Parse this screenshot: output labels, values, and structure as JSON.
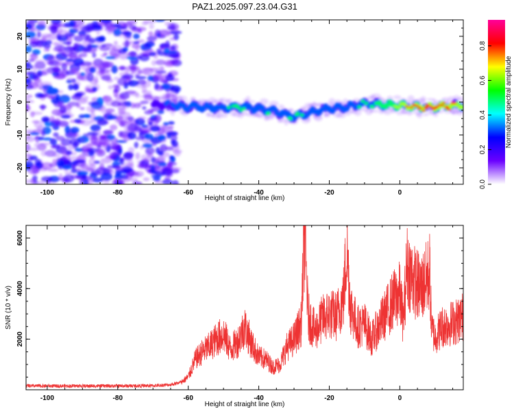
{
  "figure": {
    "title": "PAZ1.2025.097.23.04.G31"
  },
  "chart_data": [
    {
      "type": "heatmap",
      "xlabel": "Height of straight line (km)",
      "ylabel": "Frequency (Hz)",
      "xlim": [
        -106,
        18
      ],
      "ylim": [
        -25,
        25
      ],
      "x_ticks": [
        -100,
        -80,
        -60,
        -40,
        -20,
        0
      ],
      "y_ticks": [
        -20,
        -10,
        0,
        10,
        20
      ],
      "grid": false,
      "colorbar": {
        "label": "Normalized spectral amplitude",
        "range": [
          0,
          0.95
        ],
        "ticks": [
          "0.0",
          "0.2",
          "0.4",
          "0.6",
          "0.8"
        ],
        "colors": [
          "#ffffff",
          "#6a00ff",
          "#0000ff",
          "#00ffff",
          "#00ff00",
          "#ffff00",
          "#ff0000",
          "#ff0099"
        ]
      },
      "ridge": {
        "x": [
          -70,
          -65,
          -60,
          -55,
          -50,
          -45,
          -40,
          -35,
          -30,
          -25,
          -20,
          -15,
          -10,
          -5,
          0,
          5,
          10,
          15,
          18
        ],
        "frequency": [
          -1,
          -1,
          -1.5,
          -1.5,
          -1.8,
          -1.5,
          -2,
          -3,
          -4.5,
          -3,
          -2,
          -1.5,
          -0.5,
          -0.8,
          -1,
          -1.5,
          -1.5,
          -1,
          -1
        ],
        "peak_amplitude": [
          0.15,
          0.3,
          0.4,
          0.35,
          0.4,
          0.45,
          0.4,
          0.4,
          0.45,
          0.4,
          0.35,
          0.4,
          0.45,
          0.5,
          0.6,
          0.85,
          0.85,
          0.8,
          0.6
        ]
      },
      "noise_region": {
        "x_range": [
          -106,
          -63
        ],
        "frequency_range": [
          -25,
          25
        ],
        "amplitude": [
          0.02,
          0.25
        ]
      }
    },
    {
      "type": "line",
      "xlabel": "Height of straight line (km)",
      "ylabel": "SNR (10 * v/v)",
      "xlim": [
        -106,
        18
      ],
      "ylim": [
        0,
        6500
      ],
      "x_ticks": [
        -100,
        -80,
        -60,
        -40,
        -20,
        0
      ],
      "y_ticks": [
        2000,
        4000,
        6000
      ],
      "grid": false,
      "series": [
        {
          "color": "#ee3333",
          "x": [
            -106,
            -100,
            -90,
            -80,
            -70,
            -65,
            -62,
            -60,
            -58,
            -56,
            -54,
            -52,
            -50,
            -48,
            -46,
            -44,
            -42,
            -40,
            -38,
            -36,
            -34,
            -32,
            -30,
            -28,
            -27,
            -26,
            -24,
            -22,
            -20,
            -18,
            -16,
            -15,
            -14,
            -12,
            -10,
            -8,
            -6,
            -4,
            -2,
            0,
            1,
            2,
            4,
            6,
            8,
            8.5,
            9,
            10,
            12,
            14,
            16,
            18
          ],
          "y": [
            150,
            150,
            150,
            150,
            160,
            200,
            300,
            500,
            1200,
            1500,
            1700,
            2000,
            2200,
            1600,
            1900,
            2500,
            1800,
            1300,
            1200,
            900,
            1000,
            1700,
            2000,
            2600,
            6200,
            2900,
            2300,
            2800,
            3000,
            2900,
            3600,
            5700,
            3300,
            2500,
            2600,
            2000,
            2500,
            3000,
            3500,
            3800,
            2700,
            4900,
            4300,
            4000,
            4500,
            4700,
            2400,
            2100,
            2500,
            2600,
            2700,
            2900
          ]
        }
      ]
    }
  ]
}
